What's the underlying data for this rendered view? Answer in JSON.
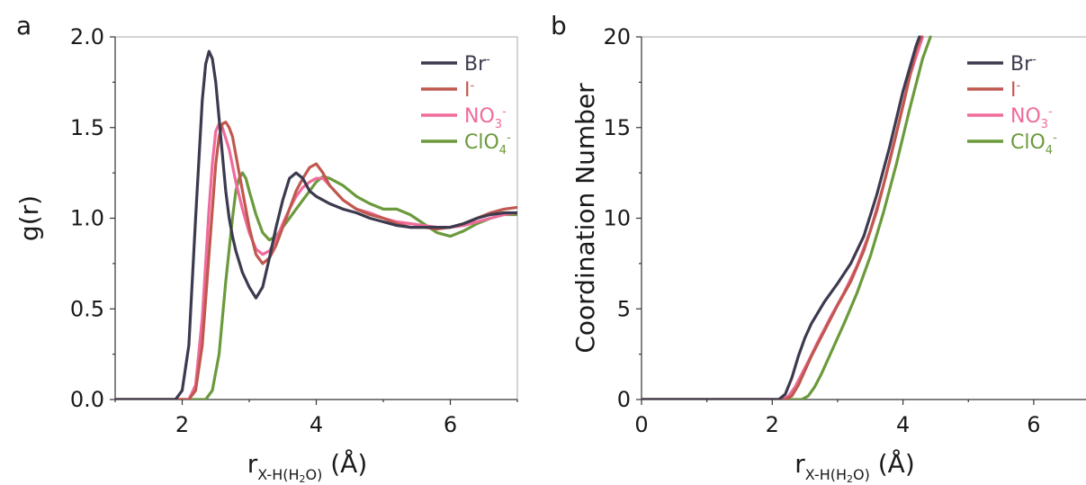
{
  "chart_data": [
    {
      "panel_label": "a",
      "type": "line",
      "ylabel": "g(r)",
      "xlabel": {
        "main": "r",
        "sub": "X-H(H",
        "sub2": "2",
        "sub3": "O)",
        "unit": " (Å)"
      },
      "xlim": [
        1.0,
        7.0
      ],
      "ylim": [
        0.0,
        2.0
      ],
      "xticks": [
        2,
        4,
        6
      ],
      "yticks": [
        0.0,
        0.5,
        1.0,
        1.5,
        2.0
      ],
      "ytick_labels": [
        "0.0",
        "0.5",
        "1.0",
        "1.5",
        "2.0"
      ],
      "legend_position": "top-right",
      "series": [
        {
          "name": "Br",
          "sup": "-",
          "color": "#3c3a4e",
          "x": [
            1.0,
            1.9,
            2.0,
            2.1,
            2.2,
            2.3,
            2.35,
            2.4,
            2.45,
            2.5,
            2.55,
            2.6,
            2.65,
            2.7,
            2.75,
            2.8,
            2.9,
            3.0,
            3.1,
            3.2,
            3.3,
            3.4,
            3.5,
            3.6,
            3.7,
            3.8,
            3.9,
            4.0,
            4.1,
            4.2,
            4.4,
            4.6,
            4.8,
            5.0,
            5.2,
            5.4,
            5.6,
            5.8,
            6.0,
            6.2,
            6.4,
            6.6,
            6.8,
            7.0
          ],
          "y": [
            0.0,
            0.0,
            0.05,
            0.3,
            1.0,
            1.65,
            1.85,
            1.92,
            1.88,
            1.75,
            1.55,
            1.35,
            1.15,
            1.0,
            0.9,
            0.82,
            0.7,
            0.62,
            0.56,
            0.62,
            0.78,
            0.95,
            1.1,
            1.22,
            1.25,
            1.22,
            1.15,
            1.12,
            1.1,
            1.08,
            1.05,
            1.03,
            1.0,
            0.98,
            0.96,
            0.95,
            0.95,
            0.95,
            0.95,
            0.97,
            1.0,
            1.02,
            1.03,
            1.03
          ]
        },
        {
          "name": "I",
          "sup": "-",
          "color": "#c0584f",
          "x": [
            1.0,
            2.1,
            2.2,
            2.3,
            2.4,
            2.5,
            2.55,
            2.6,
            2.65,
            2.7,
            2.75,
            2.8,
            2.9,
            3.0,
            3.1,
            3.2,
            3.3,
            3.4,
            3.5,
            3.6,
            3.7,
            3.8,
            3.9,
            4.0,
            4.1,
            4.2,
            4.4,
            4.6,
            4.8,
            5.0,
            5.2,
            5.4,
            5.6,
            5.8,
            6.0,
            6.2,
            6.4,
            6.6,
            6.8,
            7.0
          ],
          "y": [
            0.0,
            0.0,
            0.05,
            0.3,
            0.8,
            1.3,
            1.45,
            1.52,
            1.53,
            1.5,
            1.45,
            1.35,
            1.15,
            0.95,
            0.8,
            0.75,
            0.78,
            0.85,
            0.95,
            1.05,
            1.15,
            1.22,
            1.28,
            1.3,
            1.25,
            1.18,
            1.1,
            1.05,
            1.02,
            1.0,
            0.97,
            0.95,
            0.95,
            0.94,
            0.95,
            0.97,
            1.0,
            1.03,
            1.05,
            1.06
          ]
        },
        {
          "name": "NO",
          "sub": "3",
          "sup": "-",
          "color": "#f06b9b",
          "x": [
            1.0,
            2.1,
            2.2,
            2.3,
            2.4,
            2.45,
            2.5,
            2.55,
            2.6,
            2.7,
            2.8,
            2.9,
            3.0,
            3.1,
            3.2,
            3.3,
            3.4,
            3.5,
            3.6,
            3.7,
            3.8,
            3.9,
            4.0,
            4.1,
            4.2,
            4.4,
            4.6,
            4.8,
            5.0,
            5.2,
            5.4,
            5.6,
            5.8,
            6.0,
            6.2,
            6.4,
            6.6,
            6.8,
            7.0
          ],
          "y": [
            0.0,
            0.0,
            0.08,
            0.45,
            1.05,
            1.3,
            1.48,
            1.52,
            1.5,
            1.38,
            1.2,
            1.05,
            0.92,
            0.83,
            0.8,
            0.82,
            0.88,
            0.97,
            1.05,
            1.12,
            1.17,
            1.2,
            1.22,
            1.22,
            1.18,
            1.1,
            1.05,
            1.03,
            1.0,
            0.98,
            0.97,
            0.96,
            0.95,
            0.95,
            0.96,
            0.98,
            1.0,
            1.02,
            1.03
          ]
        },
        {
          "name": "ClO",
          "sub": "4",
          "sup": "-",
          "color": "#6b9a3c",
          "x": [
            1.0,
            2.35,
            2.45,
            2.55,
            2.65,
            2.75,
            2.8,
            2.85,
            2.9,
            2.95,
            3.0,
            3.1,
            3.2,
            3.3,
            3.4,
            3.5,
            3.6,
            3.7,
            3.8,
            3.9,
            4.0,
            4.1,
            4.2,
            4.4,
            4.6,
            4.8,
            5.0,
            5.2,
            5.4,
            5.6,
            5.8,
            6.0,
            6.2,
            6.4,
            6.6,
            6.8,
            7.0
          ],
          "y": [
            0.0,
            0.0,
            0.05,
            0.25,
            0.65,
            1.0,
            1.15,
            1.22,
            1.25,
            1.22,
            1.15,
            1.02,
            0.92,
            0.88,
            0.9,
            0.95,
            1.0,
            1.05,
            1.1,
            1.15,
            1.2,
            1.23,
            1.22,
            1.18,
            1.12,
            1.08,
            1.05,
            1.05,
            1.02,
            0.97,
            0.92,
            0.9,
            0.93,
            0.97,
            1.0,
            1.02,
            1.02
          ]
        }
      ]
    },
    {
      "panel_label": "b",
      "type": "line",
      "ylabel": "Coordination Number",
      "xlabel": {
        "main": "r",
        "sub": "X-H(H",
        "sub2": "2",
        "sub3": "O)",
        "unit": " (Å)"
      },
      "xlim": [
        0.0,
        6.8
      ],
      "ylim": [
        0.0,
        20.0
      ],
      "xticks": [
        0,
        2,
        4,
        6
      ],
      "yticks": [
        0,
        5,
        10,
        15,
        20
      ],
      "ytick_labels": [
        "0",
        "5",
        "10",
        "15",
        "20"
      ],
      "legend_position": "top-right",
      "series": [
        {
          "name": "Br",
          "sup": "-",
          "color": "#3c3a4e",
          "x": [
            0.0,
            2.1,
            2.2,
            2.3,
            2.4,
            2.5,
            2.6,
            2.8,
            3.0,
            3.2,
            3.4,
            3.6,
            3.8,
            4.0,
            4.2,
            4.25
          ],
          "y": [
            0.0,
            0.0,
            0.3,
            1.2,
            2.4,
            3.4,
            4.2,
            5.4,
            6.4,
            7.5,
            9.0,
            11.3,
            14.0,
            17.0,
            19.5,
            20.0
          ]
        },
        {
          "name": "I",
          "sup": "-",
          "color": "#c0584f",
          "x": [
            0.0,
            2.2,
            2.3,
            2.4,
            2.5,
            2.6,
            2.8,
            3.0,
            3.2,
            3.4,
            3.6,
            3.8,
            4.0,
            4.2,
            4.28
          ],
          "y": [
            0.0,
            0.0,
            0.2,
            0.8,
            1.6,
            2.4,
            3.8,
            5.2,
            6.5,
            8.2,
            10.4,
            13.2,
            16.2,
            19.3,
            20.0
          ]
        },
        {
          "name": "NO",
          "sub": "3",
          "sup": "-",
          "color": "#f06b9b",
          "x": [
            0.0,
            2.15,
            2.25,
            2.35,
            2.45,
            2.55,
            2.7,
            2.9,
            3.1,
            3.3,
            3.5,
            3.7,
            3.9,
            4.1,
            4.3
          ],
          "y": [
            0.0,
            0.0,
            0.2,
            0.7,
            1.4,
            2.1,
            3.2,
            4.6,
            5.9,
            7.4,
            9.3,
            11.8,
            14.7,
            17.8,
            20.0
          ]
        },
        {
          "name": "ClO",
          "sub": "4",
          "sup": "-",
          "color": "#6b9a3c",
          "x": [
            0.0,
            2.45,
            2.55,
            2.65,
            2.75,
            2.9,
            3.1,
            3.3,
            3.5,
            3.7,
            3.9,
            4.1,
            4.3,
            4.42
          ],
          "y": [
            0.0,
            0.0,
            0.2,
            0.7,
            1.4,
            2.6,
            4.2,
            5.9,
            7.9,
            10.3,
            13.0,
            16.0,
            18.8,
            20.0
          ]
        }
      ]
    }
  ]
}
